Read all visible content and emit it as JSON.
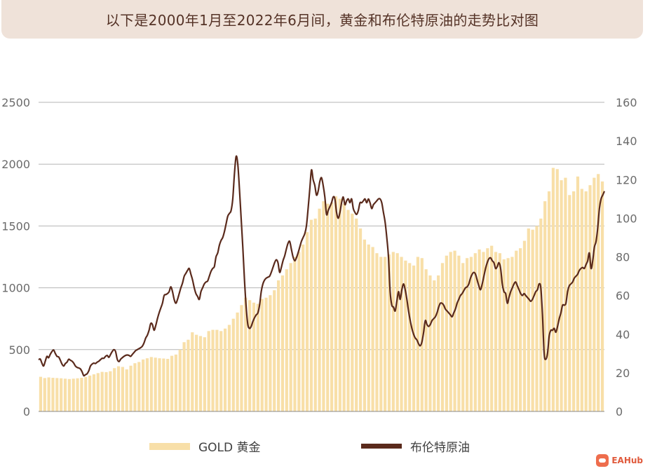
{
  "title": "以下是2000年1月至2022年6月间，黄金和布伦特原油的走势比对图",
  "watermark": "EAHub",
  "colors": {
    "gold": "#f8dfa8",
    "oil": "#5a2a1c",
    "grid": "#b5b5b5",
    "title_bg": "#efe2d9"
  },
  "chart_data": {
    "type": "bar+line",
    "left_axis": {
      "ticks": [
        0,
        500,
        1000,
        1500,
        2000,
        2500
      ],
      "range": [
        0,
        2500
      ]
    },
    "right_axis": {
      "ticks": [
        0,
        20,
        40,
        60,
        80,
        100,
        120,
        140,
        160
      ],
      "range": [
        0,
        160
      ]
    },
    "legend": {
      "position": "bottom",
      "entries": [
        "GOLD 黄金",
        "布伦特原油"
      ]
    },
    "x_range": [
      "2000-01",
      "2022-06"
    ],
    "series": [
      {
        "name": "GOLD 黄金",
        "type": "bar",
        "axis": "left",
        "interval": "quarterly",
        "values": [
          280,
          270,
          275,
          272,
          270,
          268,
          265,
          262,
          265,
          268,
          272,
          278,
          290,
          300,
          310,
          320,
          318,
          325,
          350,
          365,
          360,
          340,
          370,
          390,
          400,
          420,
          430,
          440,
          435,
          430,
          428,
          425,
          450,
          460,
          500,
          560,
          580,
          640,
          620,
          610,
          600,
          650,
          660,
          660,
          650,
          670,
          700,
          750,
          800,
          860,
          920,
          900,
          880,
          870,
          910,
          920,
          940,
          980,
          1060,
          1100,
          1150,
          1200,
          1250,
          1290,
          1350,
          1450,
          1550,
          1560,
          1640,
          1700,
          1680,
          1690,
          1740,
          1720,
          1680,
          1630,
          1600,
          1560,
          1480,
          1390,
          1350,
          1330,
          1280,
          1250,
          1250,
          1270,
          1290,
          1280,
          1250,
          1220,
          1200,
          1180,
          1250,
          1240,
          1150,
          1100,
          1060,
          1100,
          1200,
          1260,
          1290,
          1300,
          1260,
          1200,
          1240,
          1250,
          1280,
          1310,
          1290,
          1320,
          1340,
          1290,
          1280,
          1230,
          1240,
          1250,
          1300,
          1320,
          1380,
          1480,
          1470,
          1500,
          1560,
          1700,
          1780,
          1970,
          1960,
          1870,
          1890,
          1750,
          1780,
          1900,
          1800,
          1780,
          1830,
          1890,
          1920,
          1860
        ]
      },
      {
        "name": "布伦特原油",
        "type": "line",
        "axis": "right",
        "interval": "monthly",
        "values": [
          26.8,
          27.1,
          25.0,
          23.5,
          26.0,
          28.5,
          27.8,
          29.6,
          31.0,
          31.8,
          30.0,
          28.5,
          28.2,
          26.5,
          24.5,
          23.5,
          24.8,
          25.5,
          27.0,
          26.5,
          26.0,
          25.0,
          23.5,
          22.8,
          22.5,
          22.0,
          20.5,
          18.5,
          19.0,
          19.5,
          21.0,
          23.5,
          24.5,
          25.0,
          24.8,
          25.5,
          26.0,
          26.8,
          27.5,
          27.5,
          28.5,
          29.0,
          28.0,
          29.5,
          31.0,
          32.0,
          31.0,
          27.0,
          25.8,
          27.0,
          27.8,
          28.5,
          29.0,
          29.2,
          29.0,
          28.5,
          29.5,
          30.5,
          31.5,
          32.0,
          32.5,
          33.0,
          33.8,
          35.5,
          38.0,
          39.5,
          42.0,
          45.5,
          45.0,
          42.0,
          44.5,
          48.0,
          51.0,
          53.5,
          56.0,
          60.0,
          60.5,
          61.0,
          62.0,
          64.5,
          62.0,
          58.0,
          56.0,
          58.0,
          61.0,
          64.0,
          66.5,
          70.0,
          71.5,
          73.0,
          74.0,
          71.0,
          68.0,
          64.0,
          61.0,
          59.5,
          58.0,
          62.0,
          64.0,
          66.0,
          67.0,
          67.5,
          70.0,
          72.5,
          74.0,
          75.0,
          80.0,
          82.0,
          86.0,
          88.5,
          90.0,
          93.0,
          97.0,
          101.0,
          102.5,
          104.0,
          110.0,
          123.0,
          132.0,
          128.0,
          115.0,
          100.0,
          85.0,
          68.0,
          54.0,
          45.0,
          43.0,
          44.0,
          46.5,
          48.5,
          50.0,
          51.0,
          55.0,
          62.0,
          66.0,
          68.0,
          69.0,
          69.5,
          70.0,
          72.0,
          74.5,
          77.0,
          78.5,
          77.0,
          72.0,
          74.5,
          78.0,
          80.5,
          84.0,
          87.0,
          88.0,
          84.0,
          80.0,
          78.0,
          79.5,
          82.0,
          85.0,
          88.0,
          90.0,
          92.0,
          96.0,
          105.0,
          115.0,
          125.0,
          120.0,
          117.0,
          112.0,
          114.0,
          119.0,
          121.0,
          117.0,
          111.0,
          102.0,
          104.0,
          106.0,
          108.0,
          111.0,
          110.0,
          103.0,
          100.0,
          103.0,
          108.0,
          111.0,
          107.0,
          109.0,
          110.0,
          108.0,
          110.0,
          105.0,
          103.0,
          102.0,
          104.0,
          108.0,
          108.0,
          109.0,
          110.0,
          108.0,
          110.0,
          108.0,
          105.0,
          107.0,
          108.0,
          109.0,
          110.0,
          110.0,
          108.0,
          103.0,
          98.0,
          90.0,
          80.0,
          62.0,
          55.0,
          54.0,
          52.0,
          57.0,
          62.0,
          58.0,
          63.0,
          66.0,
          63.0,
          58.0,
          52.0,
          47.0,
          43.0,
          40.0,
          38.0,
          37.0,
          35.0,
          34.0,
          36.0,
          41.0,
          47.0,
          45.0,
          44.0,
          45.0,
          47.0,
          48.0,
          49.0,
          51.0,
          54.0,
          56.0,
          56.0,
          55.0,
          53.0,
          52.0,
          51.0,
          50.0,
          49.0,
          51.0,
          53.0,
          56.0,
          58.0,
          60.0,
          61.0,
          62.5,
          64.0,
          64.5,
          66.0,
          69.0,
          71.0,
          72.0,
          71.0,
          68.0,
          65.0,
          63.0,
          66.0,
          70.0,
          74.0,
          77.0,
          79.0,
          79.5,
          78.0,
          77.0,
          74.0,
          75.0,
          77.0,
          74.0,
          66.0,
          62.0,
          61.0,
          56.0,
          59.0,
          62.0,
          64.0,
          66.0,
          67.0,
          65.0,
          63.0,
          61.0,
          60.0,
          61.0,
          60.0,
          59.0,
          58.0,
          57.0,
          58.0,
          60.0,
          62.0,
          63.0,
          66.0,
          64.0,
          50.0,
          30.0,
          27.0,
          30.0,
          39.0,
          42.0,
          42.0,
          43.0,
          41.0,
          44.0,
          48.0,
          51.0,
          55.0,
          55.0,
          56.0,
          62.0,
          65.0,
          66.0,
          67.0,
          69.0,
          70.0,
          71.0,
          73.0,
          74.0,
          74.5,
          74.0,
          76.0,
          78.0,
          82.0,
          74.0,
          78.0,
          85.0,
          88.0,
          95.0,
          105.0,
          110.0,
          112.0,
          114.0
        ]
      }
    ]
  }
}
